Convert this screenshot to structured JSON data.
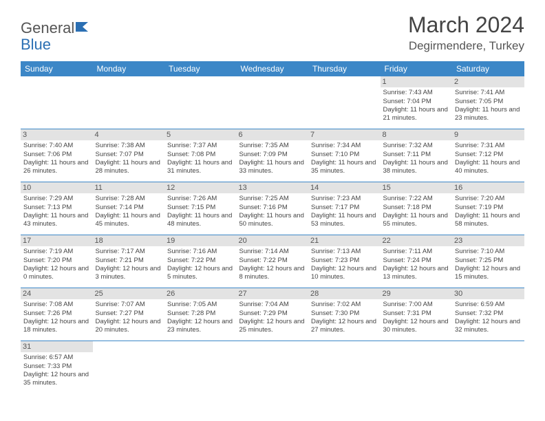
{
  "logo": {
    "part1": "General",
    "part2": "Blue"
  },
  "title": "March 2024",
  "location": "Degirmendere, Turkey",
  "colors": {
    "header_bg": "#3c87c7",
    "daynum_bg": "#e3e3e3",
    "rule": "#3c87c7",
    "logo_accent": "#2b6fb3"
  },
  "dayNames": [
    "Sunday",
    "Monday",
    "Tuesday",
    "Wednesday",
    "Thursday",
    "Friday",
    "Saturday"
  ],
  "weeks": [
    [
      {
        "n": "",
        "sr": "",
        "ss": "",
        "dl": ""
      },
      {
        "n": "",
        "sr": "",
        "ss": "",
        "dl": ""
      },
      {
        "n": "",
        "sr": "",
        "ss": "",
        "dl": ""
      },
      {
        "n": "",
        "sr": "",
        "ss": "",
        "dl": ""
      },
      {
        "n": "",
        "sr": "",
        "ss": "",
        "dl": ""
      },
      {
        "n": "1",
        "sr": "Sunrise: 7:43 AM",
        "ss": "Sunset: 7:04 PM",
        "dl": "Daylight: 11 hours and 21 minutes."
      },
      {
        "n": "2",
        "sr": "Sunrise: 7:41 AM",
        "ss": "Sunset: 7:05 PM",
        "dl": "Daylight: 11 hours and 23 minutes."
      }
    ],
    [
      {
        "n": "3",
        "sr": "Sunrise: 7:40 AM",
        "ss": "Sunset: 7:06 PM",
        "dl": "Daylight: 11 hours and 26 minutes."
      },
      {
        "n": "4",
        "sr": "Sunrise: 7:38 AM",
        "ss": "Sunset: 7:07 PM",
        "dl": "Daylight: 11 hours and 28 minutes."
      },
      {
        "n": "5",
        "sr": "Sunrise: 7:37 AM",
        "ss": "Sunset: 7:08 PM",
        "dl": "Daylight: 11 hours and 31 minutes."
      },
      {
        "n": "6",
        "sr": "Sunrise: 7:35 AM",
        "ss": "Sunset: 7:09 PM",
        "dl": "Daylight: 11 hours and 33 minutes."
      },
      {
        "n": "7",
        "sr": "Sunrise: 7:34 AM",
        "ss": "Sunset: 7:10 PM",
        "dl": "Daylight: 11 hours and 35 minutes."
      },
      {
        "n": "8",
        "sr": "Sunrise: 7:32 AM",
        "ss": "Sunset: 7:11 PM",
        "dl": "Daylight: 11 hours and 38 minutes."
      },
      {
        "n": "9",
        "sr": "Sunrise: 7:31 AM",
        "ss": "Sunset: 7:12 PM",
        "dl": "Daylight: 11 hours and 40 minutes."
      }
    ],
    [
      {
        "n": "10",
        "sr": "Sunrise: 7:29 AM",
        "ss": "Sunset: 7:13 PM",
        "dl": "Daylight: 11 hours and 43 minutes."
      },
      {
        "n": "11",
        "sr": "Sunrise: 7:28 AM",
        "ss": "Sunset: 7:14 PM",
        "dl": "Daylight: 11 hours and 45 minutes."
      },
      {
        "n": "12",
        "sr": "Sunrise: 7:26 AM",
        "ss": "Sunset: 7:15 PM",
        "dl": "Daylight: 11 hours and 48 minutes."
      },
      {
        "n": "13",
        "sr": "Sunrise: 7:25 AM",
        "ss": "Sunset: 7:16 PM",
        "dl": "Daylight: 11 hours and 50 minutes."
      },
      {
        "n": "14",
        "sr": "Sunrise: 7:23 AM",
        "ss": "Sunset: 7:17 PM",
        "dl": "Daylight: 11 hours and 53 minutes."
      },
      {
        "n": "15",
        "sr": "Sunrise: 7:22 AM",
        "ss": "Sunset: 7:18 PM",
        "dl": "Daylight: 11 hours and 55 minutes."
      },
      {
        "n": "16",
        "sr": "Sunrise: 7:20 AM",
        "ss": "Sunset: 7:19 PM",
        "dl": "Daylight: 11 hours and 58 minutes."
      }
    ],
    [
      {
        "n": "17",
        "sr": "Sunrise: 7:19 AM",
        "ss": "Sunset: 7:20 PM",
        "dl": "Daylight: 12 hours and 0 minutes."
      },
      {
        "n": "18",
        "sr": "Sunrise: 7:17 AM",
        "ss": "Sunset: 7:21 PM",
        "dl": "Daylight: 12 hours and 3 minutes."
      },
      {
        "n": "19",
        "sr": "Sunrise: 7:16 AM",
        "ss": "Sunset: 7:22 PM",
        "dl": "Daylight: 12 hours and 5 minutes."
      },
      {
        "n": "20",
        "sr": "Sunrise: 7:14 AM",
        "ss": "Sunset: 7:22 PM",
        "dl": "Daylight: 12 hours and 8 minutes."
      },
      {
        "n": "21",
        "sr": "Sunrise: 7:13 AM",
        "ss": "Sunset: 7:23 PM",
        "dl": "Daylight: 12 hours and 10 minutes."
      },
      {
        "n": "22",
        "sr": "Sunrise: 7:11 AM",
        "ss": "Sunset: 7:24 PM",
        "dl": "Daylight: 12 hours and 13 minutes."
      },
      {
        "n": "23",
        "sr": "Sunrise: 7:10 AM",
        "ss": "Sunset: 7:25 PM",
        "dl": "Daylight: 12 hours and 15 minutes."
      }
    ],
    [
      {
        "n": "24",
        "sr": "Sunrise: 7:08 AM",
        "ss": "Sunset: 7:26 PM",
        "dl": "Daylight: 12 hours and 18 minutes."
      },
      {
        "n": "25",
        "sr": "Sunrise: 7:07 AM",
        "ss": "Sunset: 7:27 PM",
        "dl": "Daylight: 12 hours and 20 minutes."
      },
      {
        "n": "26",
        "sr": "Sunrise: 7:05 AM",
        "ss": "Sunset: 7:28 PM",
        "dl": "Daylight: 12 hours and 23 minutes."
      },
      {
        "n": "27",
        "sr": "Sunrise: 7:04 AM",
        "ss": "Sunset: 7:29 PM",
        "dl": "Daylight: 12 hours and 25 minutes."
      },
      {
        "n": "28",
        "sr": "Sunrise: 7:02 AM",
        "ss": "Sunset: 7:30 PM",
        "dl": "Daylight: 12 hours and 27 minutes."
      },
      {
        "n": "29",
        "sr": "Sunrise: 7:00 AM",
        "ss": "Sunset: 7:31 PM",
        "dl": "Daylight: 12 hours and 30 minutes."
      },
      {
        "n": "30",
        "sr": "Sunrise: 6:59 AM",
        "ss": "Sunset: 7:32 PM",
        "dl": "Daylight: 12 hours and 32 minutes."
      }
    ],
    [
      {
        "n": "31",
        "sr": "Sunrise: 6:57 AM",
        "ss": "Sunset: 7:33 PM",
        "dl": "Daylight: 12 hours and 35 minutes."
      },
      {
        "n": "",
        "sr": "",
        "ss": "",
        "dl": ""
      },
      {
        "n": "",
        "sr": "",
        "ss": "",
        "dl": ""
      },
      {
        "n": "",
        "sr": "",
        "ss": "",
        "dl": ""
      },
      {
        "n": "",
        "sr": "",
        "ss": "",
        "dl": ""
      },
      {
        "n": "",
        "sr": "",
        "ss": "",
        "dl": ""
      },
      {
        "n": "",
        "sr": "",
        "ss": "",
        "dl": ""
      }
    ]
  ]
}
